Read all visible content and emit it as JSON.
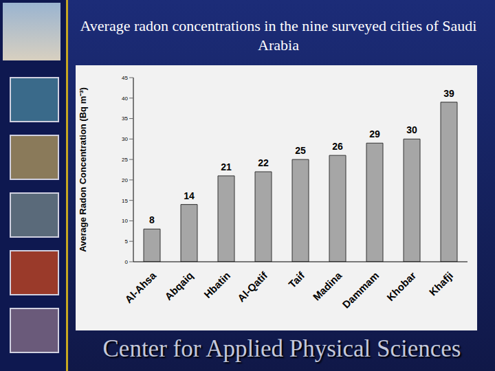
{
  "chart_data": {
    "type": "bar",
    "title": "Average radon concentrations in the nine surveyed cities of Saudi Arabia",
    "y_label": "Average Radon Concentration (Bq m⁻³)",
    "footer": "Center for Applied Physical Sciences",
    "categories": [
      "Al-Ahsa",
      "Abqaiq",
      "Hbatin",
      "Al-Qatif",
      "Taif",
      "Madina",
      "Dammam",
      "Khobar",
      "Khafji"
    ],
    "values": [
      8,
      14,
      21,
      22,
      25,
      26,
      29,
      30,
      39
    ],
    "color": "#a6a6a6",
    "ylim": [
      0,
      45
    ],
    "yticks": [
      0,
      5,
      10,
      15,
      20,
      25,
      30,
      35,
      40,
      45
    ],
    "grid": false,
    "data_labels": true
  }
}
